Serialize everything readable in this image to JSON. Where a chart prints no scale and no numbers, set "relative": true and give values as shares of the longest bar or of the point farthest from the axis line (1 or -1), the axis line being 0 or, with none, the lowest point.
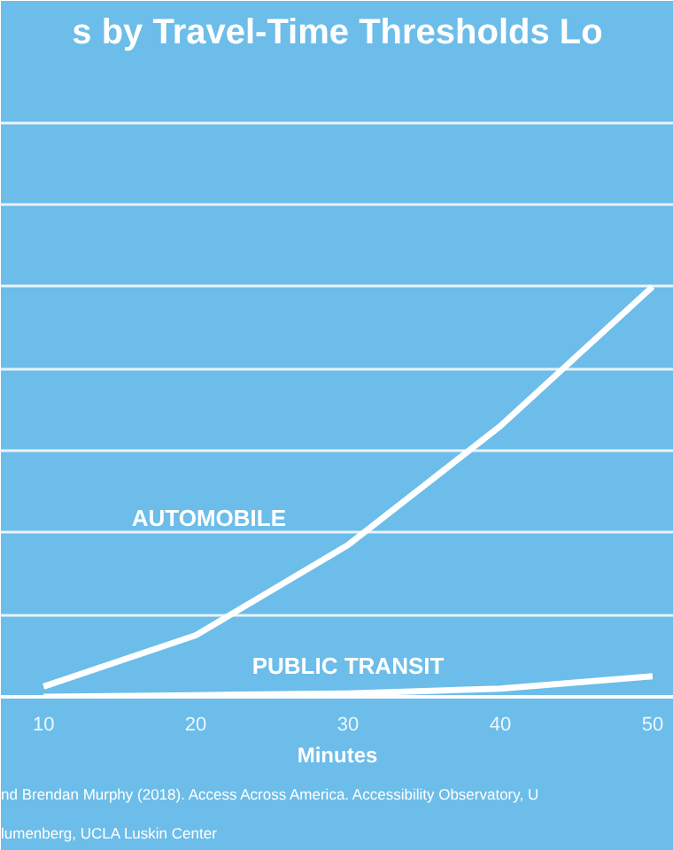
{
  "chart_data": {
    "type": "line",
    "title": "s by Travel-Time Thresholds Lo",
    "xlabel": "Minutes",
    "relative": true,
    "grid": "y",
    "marker": "none",
    "line_style": "solid",
    "x": [
      10,
      20,
      30,
      40,
      50
    ],
    "xlim": [
      7.2,
      51.4
    ],
    "xticks": [
      10,
      20,
      30,
      40,
      50
    ],
    "series": [
      {
        "name": "AUTOMOBILE",
        "color": "#ffffff",
        "values": [
          0.025,
          0.15,
          0.37,
          0.66,
          1
        ]
      },
      {
        "name": "PUBLIC TRANSIT",
        "color": "#ffffff",
        "values": [
          0.0,
          0.004,
          0.008,
          0.02,
          0.05
        ]
      }
    ],
    "annotations": [
      "nd Brendan Murphy (2018).  Access Across America.  Accessibility Observatory, U",
      "lumenberg, UCLA Luskin Center"
    ]
  }
}
